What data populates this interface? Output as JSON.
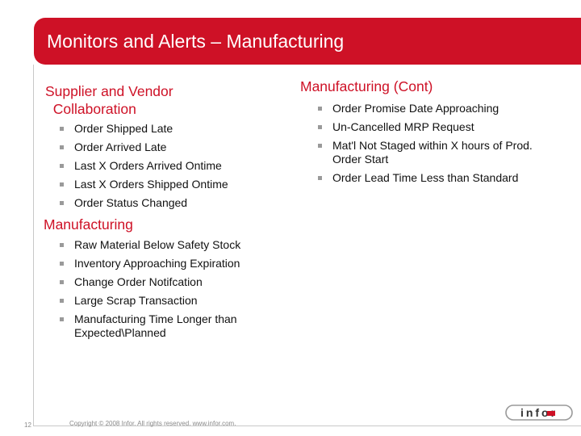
{
  "title": "Monitors and Alerts – Manufacturing",
  "colors": {
    "accent": "#ce1126",
    "bullet": "#9a9a9a",
    "text": "#111111"
  },
  "sections": {
    "supplier": {
      "heading": "Supplier and Vendor\n  Collaboration",
      "items": [
        "Order Shipped Late",
        "Order Arrived Late",
        "Last X Orders Arrived Ontime",
        "Last X Orders Shipped Ontime",
        "Order Status Changed"
      ]
    },
    "manufacturing": {
      "heading": "Manufacturing",
      "items": [
        "Raw Material Below Safety Stock",
        "Inventory Approaching Expiration",
        "Change Order Notifcation",
        "Large Scrap Transaction",
        "Manufacturing Time Longer than\nExpected\\Planned"
      ]
    },
    "manufacturing_cont": {
      "heading": "Manufacturing (Cont)",
      "items": [
        "Order Promise Date Approaching",
        "Un-Cancelled MRP Request",
        "Mat'l Not Staged within X hours of Prod.\nOrder Start",
        "Order Lead Time Less than Standard"
      ]
    }
  },
  "footer": {
    "page_number": "12",
    "copyright": "Copyright © 2008 Infor. All rights reserved. www.infor.com.",
    "logo_text": "infor",
    "logo_icon": "infor-logo-icon"
  }
}
